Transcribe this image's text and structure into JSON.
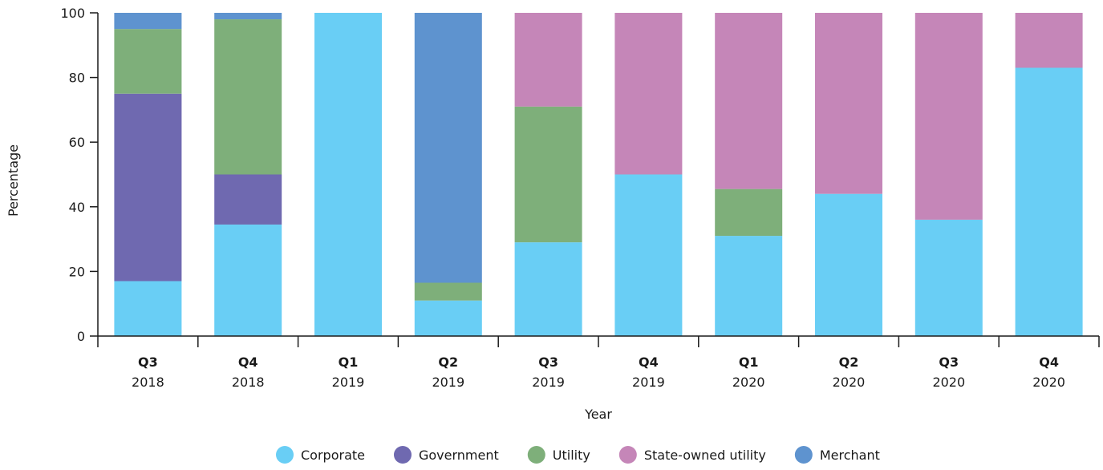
{
  "chart_data": {
    "type": "bar",
    "stacked": true,
    "xlabel": "Year",
    "ylabel": "Percentage",
    "ylim": [
      0,
      100
    ],
    "yticks": [
      0,
      20,
      40,
      60,
      80,
      100
    ],
    "grid": false,
    "legend_position": "bottom",
    "categories": [
      {
        "quarter": "Q3",
        "year": "2018"
      },
      {
        "quarter": "Q4",
        "year": "2018"
      },
      {
        "quarter": "Q1",
        "year": "2019"
      },
      {
        "quarter": "Q2",
        "year": "2019"
      },
      {
        "quarter": "Q3",
        "year": "2019"
      },
      {
        "quarter": "Q4",
        "year": "2019"
      },
      {
        "quarter": "Q1",
        "year": "2020"
      },
      {
        "quarter": "Q2",
        "year": "2020"
      },
      {
        "quarter": "Q3",
        "year": "2020"
      },
      {
        "quarter": "Q4",
        "year": "2020"
      }
    ],
    "series": [
      {
        "name": "Corporate",
        "color": "#69cef5",
        "values": [
          17,
          34.5,
          100,
          11,
          29,
          50,
          31,
          44,
          36,
          83
        ]
      },
      {
        "name": "Government",
        "color": "#6f69b0",
        "values": [
          58,
          15.5,
          0,
          0,
          0,
          0,
          0,
          0,
          0,
          0
        ]
      },
      {
        "name": "Utility",
        "color": "#7eaf7a",
        "values": [
          20,
          48,
          0,
          5.5,
          42,
          0,
          14.5,
          0,
          0,
          0
        ]
      },
      {
        "name": "State-owned utility",
        "color": "#c586b8",
        "values": [
          0,
          0,
          0,
          0,
          29,
          50,
          54.5,
          56,
          64,
          17
        ]
      },
      {
        "name": "Merchant",
        "color": "#5e93cf",
        "values": [
          5,
          2,
          0,
          83.5,
          0,
          0,
          0,
          0,
          0,
          0
        ]
      }
    ]
  }
}
